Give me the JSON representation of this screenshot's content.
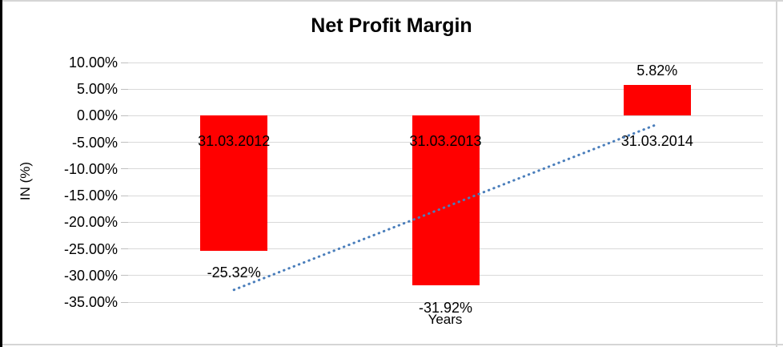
{
  "chart_data": {
    "type": "bar",
    "title": "Net Profit Margin",
    "xlabel": "Years",
    "ylabel": "IN (%)",
    "categories": [
      "31.03.2012",
      "31.03.2013",
      "31.03.2014"
    ],
    "values": [
      -25.32,
      -31.92,
      5.82
    ],
    "value_labels": [
      "-25.32%",
      "-31.92%",
      "5.82%"
    ],
    "ylim": [
      -35,
      10
    ],
    "ytick_step": 5,
    "ytick_labels": [
      "10.00%",
      "5.00%",
      "0.00%",
      "-5.00%",
      "-10.00%",
      "-15.00%",
      "-20.00%",
      "-25.00%",
      "-30.00%",
      "-35.00%"
    ],
    "grid": true,
    "legend": "none",
    "bar_color": "#ff0000",
    "trendline": {
      "type": "linear",
      "style": "dotted",
      "color": "#4a7ebb",
      "start_value": -32.7,
      "end_value": -1.6
    }
  },
  "colors": {
    "gridline": "#d9d9d9",
    "tick": "#bfbfbf",
    "frame": "#d5d5d5",
    "window_border": "#000000",
    "text": "#000000"
  }
}
